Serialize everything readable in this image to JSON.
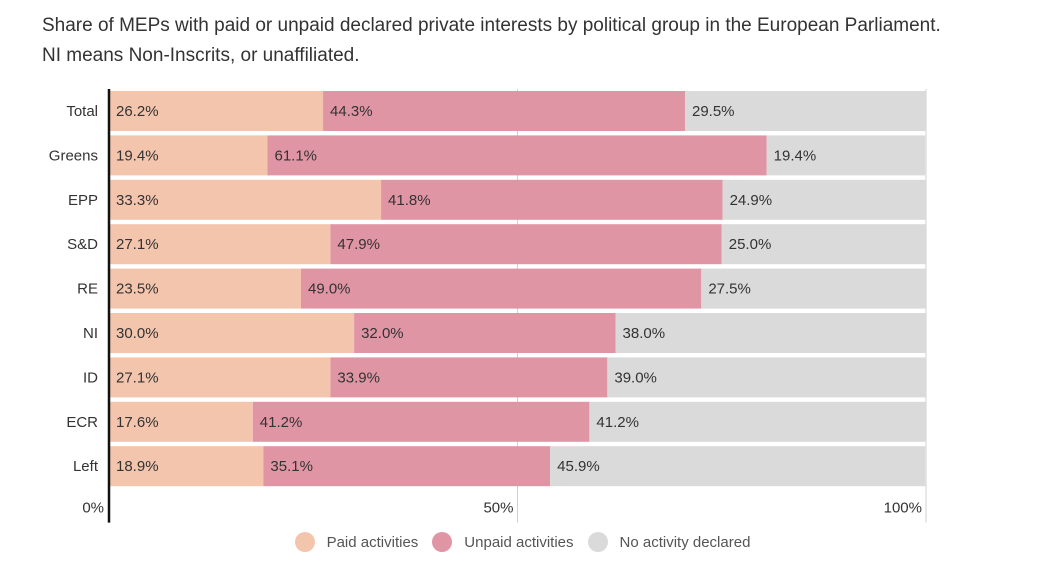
{
  "title": "Share of MEPs with paid or unpaid declared private interests by political group in the European Parliament. NI means Non-Inscrits, or unaffiliated.",
  "chart_data": {
    "type": "bar",
    "orientation": "horizontal",
    "stacked": true,
    "title": "Share of MEPs with paid or unpaid declared private interests by political group in the European Parliament. NI means Non-Inscrits, or unaffiliated.",
    "xlabel": "",
    "ylabel": "",
    "xlim": [
      0,
      100
    ],
    "x_ticks": [
      "0%",
      "50%",
      "100%"
    ],
    "grid": true,
    "legend_position": "bottom",
    "categories": [
      "Total",
      "Greens",
      "EPP",
      "S&D",
      "RE",
      "NI",
      "ID",
      "ECR",
      "Left"
    ],
    "series": [
      {
        "name": "Paid activities",
        "color": "#f4c5ad",
        "values": [
          26.2,
          19.4,
          33.3,
          27.1,
          23.5,
          30.0,
          27.1,
          17.6,
          18.9
        ],
        "labels": [
          "26.2%",
          "19.4%",
          "33.3%",
          "27.1%",
          "23.5%",
          "30.0%",
          "27.1%",
          "17.6%",
          "18.9%"
        ]
      },
      {
        "name": "Unpaid activities",
        "color": "#e095a5",
        "values": [
          44.3,
          61.1,
          41.8,
          47.9,
          49.0,
          32.0,
          33.9,
          41.2,
          35.1
        ],
        "labels": [
          "44.3%",
          "61.1%",
          "41.8%",
          "47.9%",
          "49.0%",
          "32.0%",
          "33.9%",
          "41.2%",
          "35.1%"
        ]
      },
      {
        "name": "No activity declared",
        "color": "#dadada",
        "values": [
          29.5,
          19.4,
          24.9,
          25.0,
          27.5,
          38.0,
          39.0,
          41.2,
          45.9
        ],
        "labels": [
          "29.5%",
          "19.4%",
          "24.9%",
          "25.0%",
          "27.5%",
          "38.0%",
          "39.0%",
          "41.2%",
          "45.9%"
        ]
      }
    ]
  },
  "legend": {
    "items": [
      {
        "label": "Paid activities",
        "color": "#f4c5ad"
      },
      {
        "label": "Unpaid activities",
        "color": "#e095a5"
      },
      {
        "label": "No activity declared",
        "color": "#dadada"
      }
    ]
  }
}
